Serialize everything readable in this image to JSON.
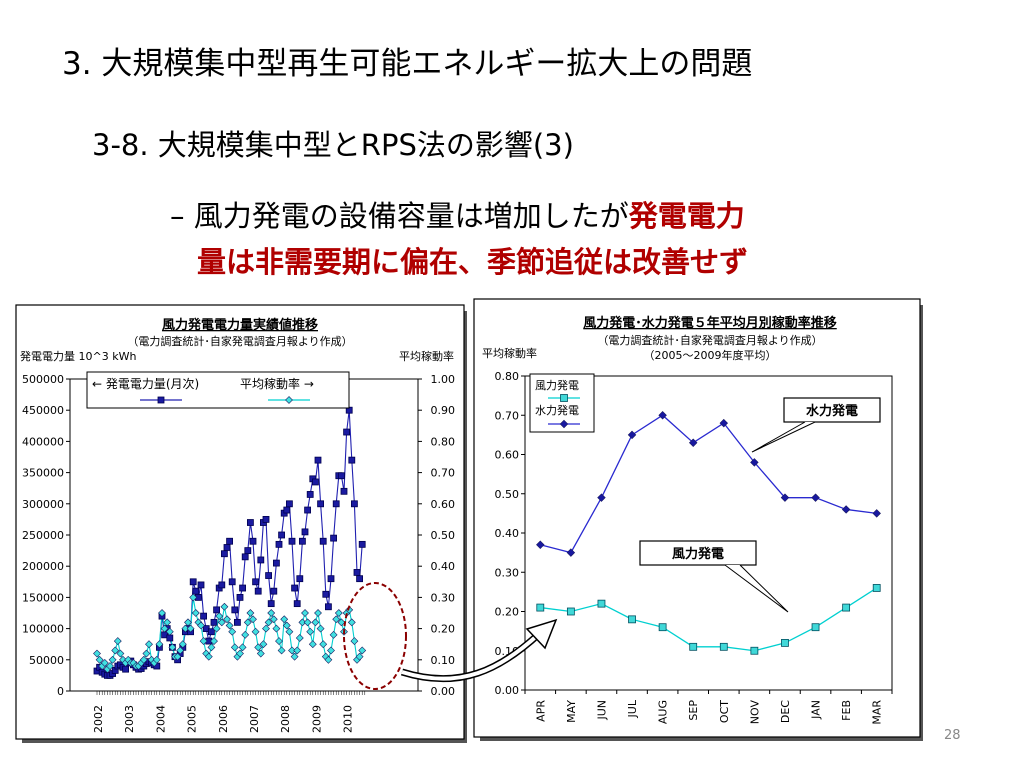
{
  "slide": {
    "title": "3. 大規模集中型再生可能エネルギー拡大上の問題",
    "subtitle": "3-8. 大規模集中型とRPS法の影響(3)",
    "bullet_dash": "–",
    "bullet_plain": "風力発電の設備容量は増加したが",
    "bullet_red_1": "発電電力",
    "bullet_red_2": "量は非需要期に偏在、季節追従は改善せず",
    "page_number": "28"
  },
  "colors": {
    "wind": "#00d0d0",
    "wind_monthly": "#1a1aa0",
    "hydro": "#2a2ad0",
    "highlight": "#8b0000",
    "red_text": "#b00000"
  },
  "chart_data": [
    {
      "type": "line",
      "title": "風力発電電力量実績値推移",
      "subtitle": "（電力調査統計･自家発電調査月報より作成）",
      "ylabel": "発電電力量 10^3 kWh",
      "ylabel_right": "平均稼動率",
      "ylim": [
        0,
        500000
      ],
      "ylim_right": [
        0,
        1.0
      ],
      "yticks": [
        "0",
        "50000",
        "100000",
        "150000",
        "200000",
        "250000",
        "300000",
        "350000",
        "400000",
        "450000",
        "500000"
      ],
      "yticks_right": [
        "0.00",
        "0.10",
        "0.20",
        "0.30",
        "0.40",
        "0.50",
        "0.60",
        "0.70",
        "0.80",
        "0.90",
        "1.00"
      ],
      "xticks": [
        "2002",
        "2003",
        "2004",
        "2005",
        "2006",
        "2007",
        "2008",
        "2009",
        "2010"
      ],
      "legend_position": "top-left",
      "legend": [
        "← 発電電力量(月次)",
        "平均稼動率 →"
      ],
      "series": [
        {
          "name": "発電電力量(月次)",
          "axis": "left",
          "values": [
            32000,
            38000,
            30000,
            27000,
            25000,
            25000,
            28000,
            33000,
            40000,
            42000,
            38000,
            35000,
            45000,
            48000,
            42000,
            38000,
            35000,
            36000,
            40000,
            44000,
            47000,
            45000,
            42000,
            40000,
            70000,
            120000,
            90000,
            100000,
            85000,
            70000,
            55000,
            50000,
            60000,
            70000,
            95000,
            100000,
            95000,
            175000,
            160000,
            150000,
            170000,
            120000,
            100000,
            80000,
            95000,
            110000,
            130000,
            165000,
            170000,
            220000,
            230000,
            240000,
            175000,
            130000,
            110000,
            150000,
            165000,
            215000,
            225000,
            270000,
            240000,
            175000,
            160000,
            210000,
            270000,
            275000,
            185000,
            140000,
            160000,
            205000,
            235000,
            250000,
            285000,
            290000,
            300000,
            240000,
            165000,
            140000,
            180000,
            240000,
            255000,
            290000,
            315000,
            340000,
            335000,
            370000,
            300000,
            240000,
            155000,
            135000,
            180000,
            245000,
            300000,
            345000,
            345000,
            320000,
            415000,
            450000,
            370000,
            300000,
            190000,
            180000,
            235000
          ]
        },
        {
          "name": "平均稼動率",
          "axis": "right",
          "values": [
            0.12,
            0.1,
            0.08,
            0.09,
            0.07,
            0.08,
            0.1,
            0.13,
            0.16,
            0.12,
            0.1,
            0.09,
            0.1,
            0.09,
            0.09,
            0.08,
            0.08,
            0.09,
            0.1,
            0.12,
            0.15,
            0.1,
            0.09,
            0.1,
            0.15,
            0.25,
            0.2,
            0.22,
            0.19,
            0.14,
            0.11,
            0.11,
            0.13,
            0.15,
            0.2,
            0.22,
            0.2,
            0.3,
            0.25,
            0.22,
            0.21,
            0.16,
            0.12,
            0.11,
            0.14,
            0.16,
            0.2,
            0.24,
            0.22,
            0.27,
            0.23,
            0.21,
            0.19,
            0.14,
            0.11,
            0.12,
            0.14,
            0.18,
            0.22,
            0.25,
            0.23,
            0.19,
            0.14,
            0.12,
            0.15,
            0.2,
            0.22,
            0.25,
            0.23,
            0.2,
            0.16,
            0.13,
            0.23,
            0.21,
            0.19,
            0.13,
            0.11,
            0.13,
            0.17,
            0.22,
            0.25,
            0.22,
            0.19,
            0.15,
            0.22,
            0.25,
            0.2,
            0.15,
            0.11,
            0.1,
            0.13,
            0.18,
            0.23,
            0.25,
            0.22,
            0.19,
            0.25,
            0.26,
            0.22,
            0.16,
            0.1,
            0.11,
            0.13
          ]
        }
      ]
    },
    {
      "type": "line",
      "title": "風力発電･水力発電５年平均月別稼動率推移",
      "subtitle": "（電力調査統計･自家発電調査月報より作成）",
      "subtitle2": "（2005～2009年度平均）",
      "ylabel": "平均稼動率",
      "ylim": [
        0,
        0.8
      ],
      "yticks": [
        "0.00",
        "0.10",
        "0.20",
        "0.30",
        "0.40",
        "0.50",
        "0.60",
        "0.70",
        "0.80"
      ],
      "categories": [
        "APR",
        "MAY",
        "JUN",
        "JUL",
        "AUG",
        "SEP",
        "OCT",
        "NOV",
        "DEC",
        "JAN",
        "FEB",
        "MAR"
      ],
      "legend_position": "top-left",
      "series": [
        {
          "name": "風力発電",
          "values": [
            0.21,
            0.2,
            0.22,
            0.18,
            0.16,
            0.11,
            0.11,
            0.1,
            0.12,
            0.16,
            0.21,
            0.26
          ]
        },
        {
          "name": "水力発電",
          "values": [
            0.37,
            0.35,
            0.49,
            0.65,
            0.7,
            0.63,
            0.68,
            0.58,
            0.49,
            0.49,
            0.46,
            0.45
          ]
        }
      ],
      "annotations": [
        "水力発電",
        "風力発電"
      ]
    }
  ]
}
